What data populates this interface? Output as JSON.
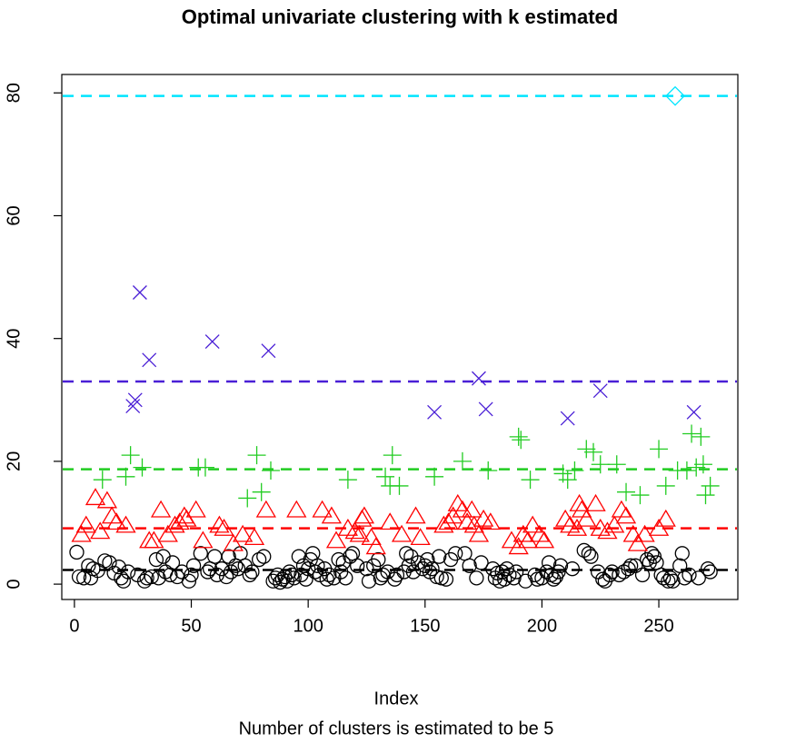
{
  "chart_data": {
    "type": "scatter",
    "title": "Optimal univariate clustering with k estimated",
    "x_label": "Index",
    "subtitle": "Number of clusters is estimated to be 5",
    "xlim": [
      -5.4,
      283.8
    ],
    "ylim": [
      -2.5,
      83
    ],
    "xticks": [
      0,
      50,
      100,
      150,
      200,
      250
    ],
    "yticks": [
      0,
      20,
      40,
      60,
      80
    ],
    "series": [
      {
        "marker": "circle",
        "color": "#000000",
        "center": 2.3,
        "x": [
          1,
          2,
          4,
          6,
          7,
          8,
          10,
          13,
          15,
          17,
          19,
          20,
          21,
          23,
          27,
          30,
          31,
          33,
          35,
          36,
          38,
          39,
          41,
          42,
          44,
          46,
          49,
          50,
          51,
          54,
          57,
          58,
          60,
          61,
          63,
          65,
          66,
          67,
          69,
          70,
          71,
          73,
          75,
          76,
          79,
          81,
          85,
          86,
          87,
          88,
          89,
          90,
          91,
          92,
          93,
          94,
          96,
          97,
          98,
          99,
          100,
          101,
          102,
          103,
          104,
          105,
          107,
          108,
          109,
          111,
          113,
          114,
          115,
          116,
          118,
          119,
          121,
          125,
          126,
          128,
          130,
          131,
          132,
          134,
          137,
          138,
          141,
          142,
          143,
          144,
          145,
          147,
          149,
          150,
          151,
          152,
          153,
          155,
          156,
          157,
          159,
          161,
          163,
          167,
          169,
          172,
          174,
          179,
          180,
          181,
          182,
          183,
          184,
          185,
          186,
          188,
          189,
          193,
          197,
          198,
          200,
          202,
          203,
          204,
          205,
          206,
          207,
          208,
          213,
          218,
          220,
          221,
          224,
          226,
          227,
          229,
          230,
          233,
          235,
          237,
          238,
          240,
          243,
          245,
          246,
          247,
          248,
          249,
          251,
          252,
          254,
          255,
          256,
          259,
          260,
          261,
          263,
          267,
          271,
          272
        ],
        "values": [
          5.2,
          1.2,
          1,
          3,
          1,
          2.5,
          2.2,
          3.8,
          3.5,
          1.8,
          2.8,
          1,
          0.5,
          2,
          1.5,
          0.5,
          1,
          1.2,
          4,
          1,
          4.5,
          2,
          1.5,
          3.5,
          1.2,
          2,
          0.5,
          1.5,
          3,
          5,
          2,
          2.5,
          4.5,
          1.5,
          2.5,
          1.2,
          4.5,
          2,
          3,
          2.5,
          5,
          3,
          1.5,
          2,
          4,
          4.5,
          0.5,
          1,
          1.5,
          0.3,
          0.8,
          1.2,
          0.5,
          2,
          1.5,
          1,
          4.5,
          1.5,
          3,
          0.8,
          2.5,
          4,
          5,
          2,
          3,
          1.5,
          2.5,
          0.8,
          1.5,
          1,
          4,
          2,
          3.5,
          1,
          4.5,
          5,
          3,
          2.5,
          0.5,
          3,
          4,
          1,
          1.5,
          2,
          0.8,
          1.5,
          2,
          5,
          3,
          4.5,
          2,
          3.5,
          2.5,
          3,
          4,
          2,
          2.5,
          1.2,
          4.5,
          1,
          0.8,
          4,
          5,
          5,
          3,
          1,
          3.5,
          2.5,
          1,
          1.8,
          0.5,
          2,
          0.8,
          2.5,
          1.5,
          1,
          2,
          0.5,
          1.5,
          0.8,
          1,
          2,
          3.5,
          1.5,
          0.8,
          1.2,
          2,
          3,
          2.5,
          5.5,
          5,
          4.5,
          2,
          0.8,
          0.5,
          1.5,
          2,
          1.5,
          2,
          2.5,
          3,
          3,
          1.5,
          4,
          3.5,
          5,
          4.5,
          3.5,
          1.5,
          1,
          0.5,
          1,
          0.5,
          3,
          5,
          1,
          1.5,
          1,
          2.5,
          2
        ]
      },
      {
        "marker": "triangle",
        "color": "#ff0000",
        "center": 9.1,
        "x": [
          3,
          5,
          9,
          11,
          14,
          16,
          18,
          22,
          32,
          34,
          37,
          40,
          43,
          45,
          47,
          48,
          52,
          55,
          62,
          64,
          68,
          72,
          77,
          82,
          95,
          106,
          110,
          112,
          117,
          120,
          122,
          123,
          124,
          127,
          129,
          135,
          140,
          146,
          148,
          158,
          160,
          162,
          164,
          166,
          168,
          170,
          171,
          173,
          175,
          178,
          187,
          190,
          192,
          194,
          196,
          199,
          201,
          210,
          212,
          215,
          216,
          217,
          219,
          223,
          225,
          228,
          231,
          234,
          236,
          239,
          241,
          244,
          250,
          253
        ],
        "values": [
          8,
          9.5,
          14,
          8.5,
          13.5,
          11,
          10,
          9.5,
          7,
          7,
          12,
          8,
          9.5,
          10,
          11,
          10.5,
          12,
          7,
          9.5,
          9,
          6.5,
          8,
          7.5,
          12,
          12,
          12,
          11,
          7,
          9,
          8.5,
          8,
          10.5,
          11,
          7.5,
          6,
          10,
          8,
          11,
          7.5,
          9.5,
          10,
          11,
          13,
          12,
          10,
          12,
          9.5,
          8,
          10.5,
          10,
          7,
          6,
          8,
          7,
          9.5,
          8,
          7,
          10.5,
          9.5,
          9,
          13,
          12,
          10.5,
          13,
          9,
          8.5,
          9.5,
          12,
          11,
          8,
          6.5,
          8,
          9,
          10.5
        ]
      },
      {
        "marker": "plus",
        "color": "#22cc22",
        "center": 18.7,
        "x": [
          12,
          22,
          24,
          29,
          53,
          56,
          74,
          78,
          80,
          84,
          117,
          133,
          135,
          136,
          139,
          154,
          166,
          177,
          190,
          191,
          195,
          209,
          211,
          214,
          219,
          222,
          225,
          232,
          236,
          242,
          250,
          253,
          258,
          262,
          264,
          266,
          268,
          269,
          270,
          272
        ],
        "values": [
          17,
          17.5,
          21,
          19,
          19,
          19,
          14,
          21,
          15,
          18.5,
          17,
          17.5,
          16,
          21,
          16,
          17.5,
          20,
          18.5,
          24,
          23.5,
          17,
          18,
          17,
          18.5,
          22,
          21.5,
          19.5,
          19.5,
          15,
          14.5,
          22,
          16,
          18.5,
          18.5,
          24.5,
          19,
          24,
          19.5,
          14.5,
          16
        ]
      },
      {
        "marker": "x",
        "color": "#4a1fd6",
        "center": 33,
        "x": [
          25,
          26,
          28,
          32,
          59,
          83,
          154,
          173,
          176,
          211,
          225,
          265
        ],
        "values": [
          29,
          30,
          47.5,
          36.5,
          39.5,
          38,
          28,
          33.5,
          28.5,
          27,
          31.5,
          28
        ]
      },
      {
        "marker": "diamond",
        "color": "#00e5ff",
        "center": 79.5,
        "x": [
          257
        ],
        "values": [
          79.5
        ]
      }
    ]
  }
}
